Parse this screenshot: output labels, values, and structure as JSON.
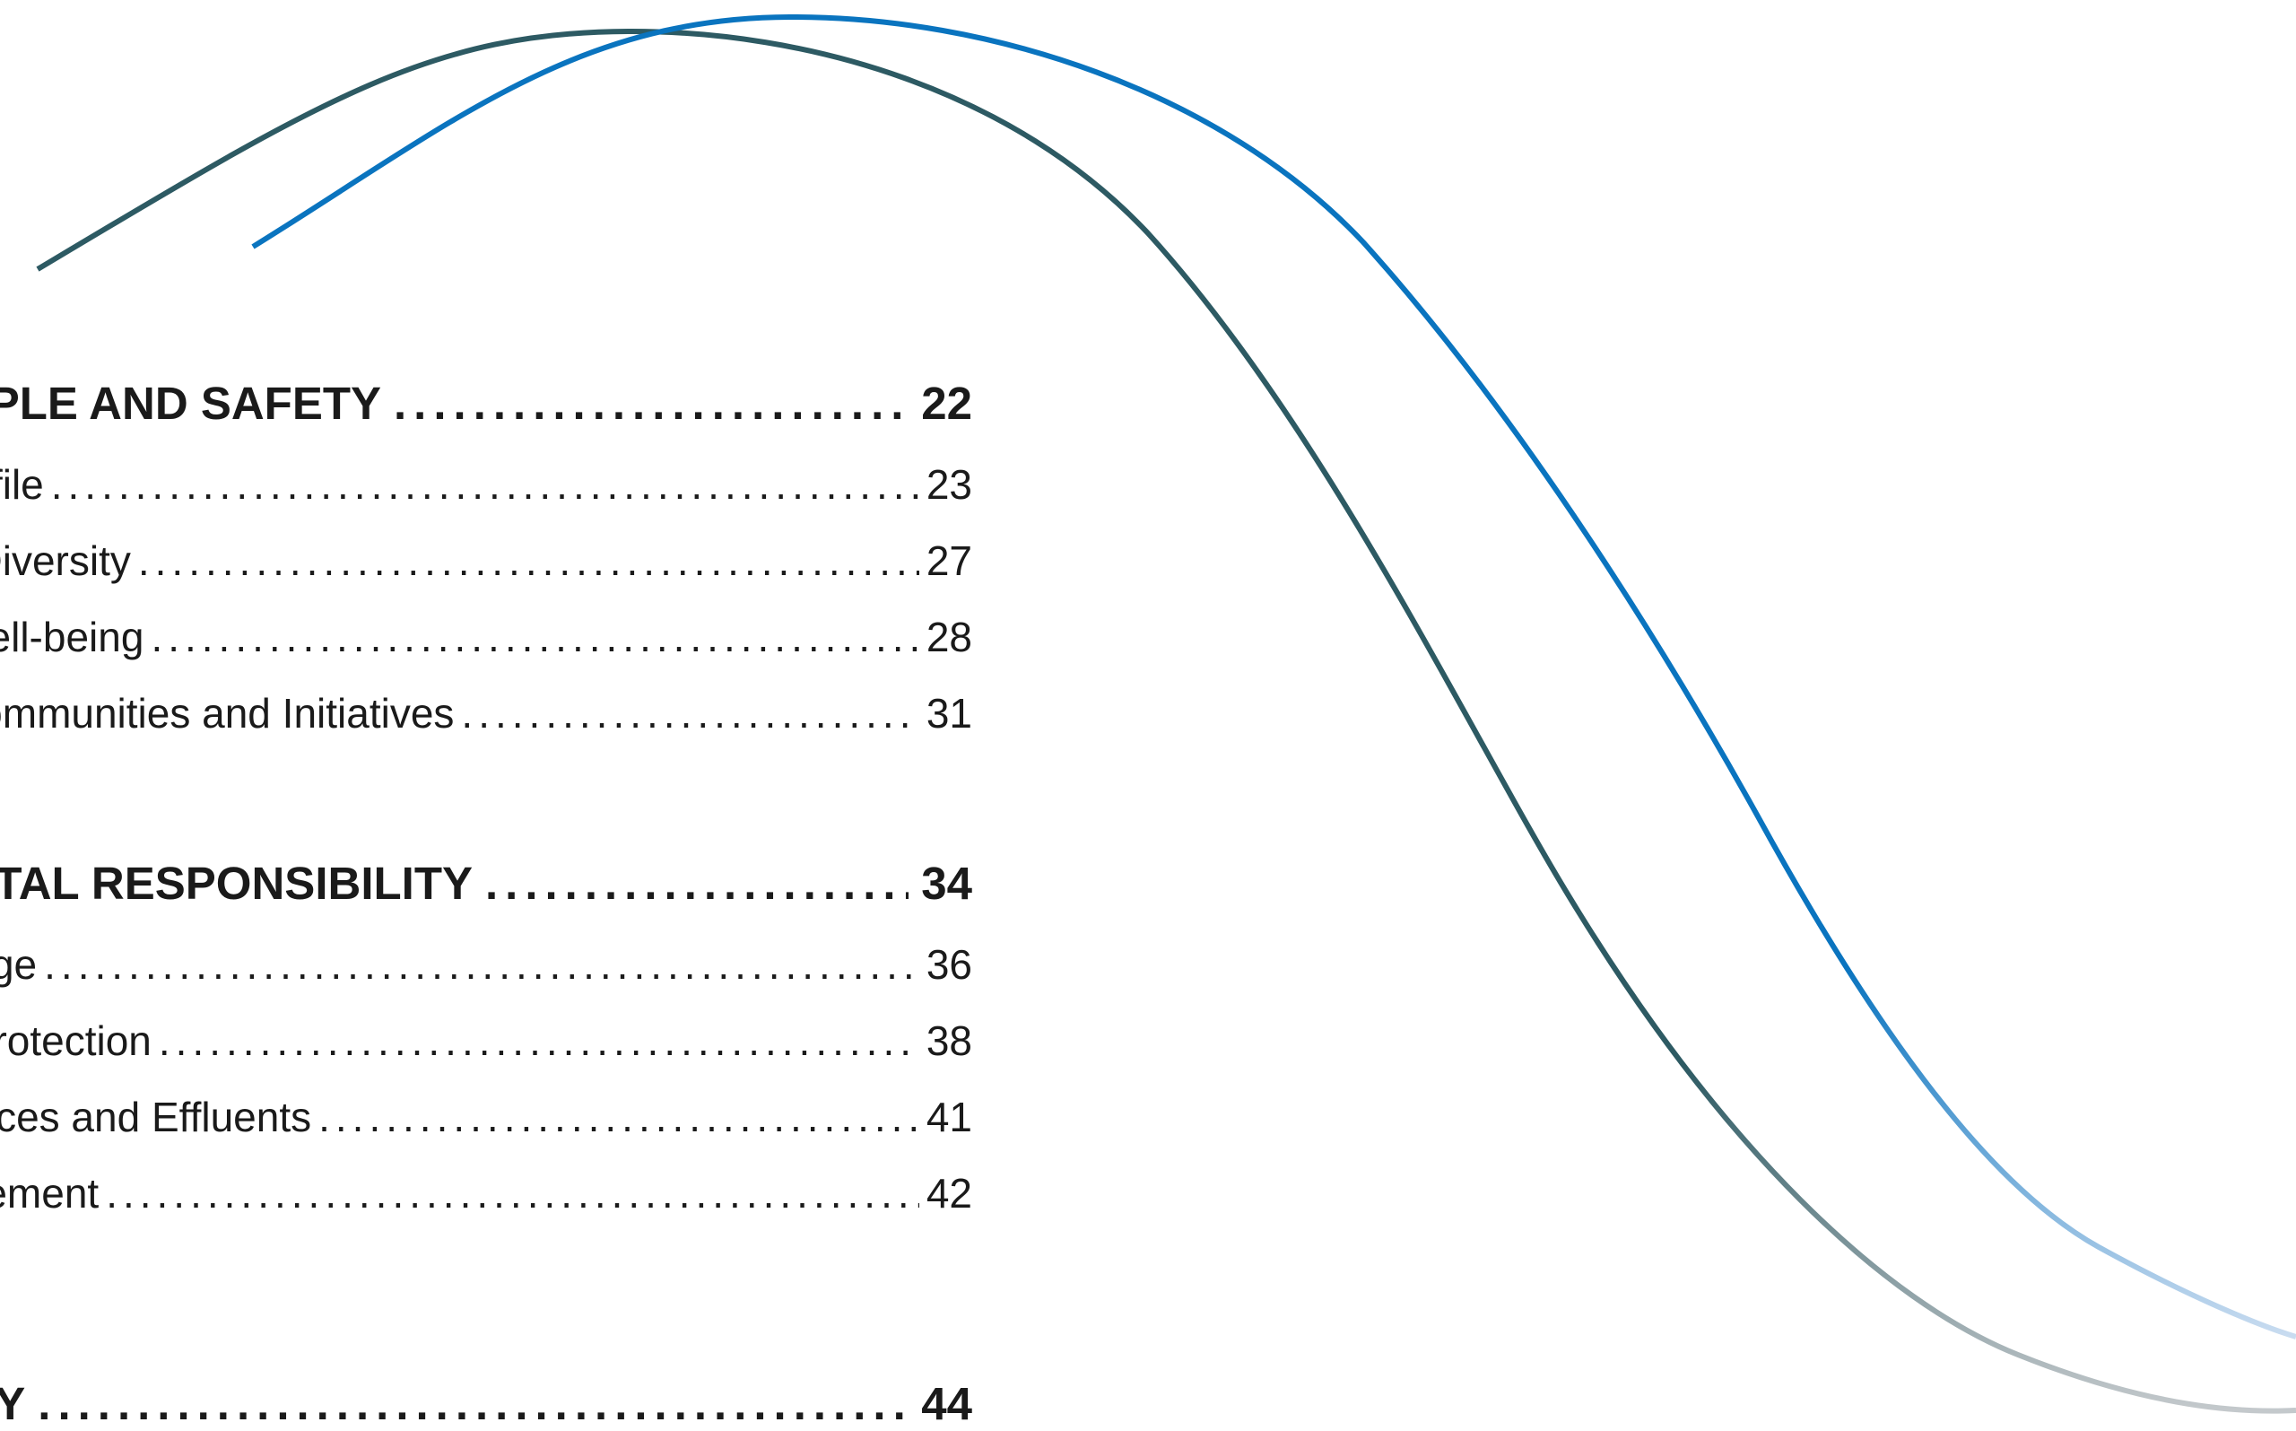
{
  "toc": {
    "sections": [
      {
        "title": "PEOPLE AND SAFETY",
        "page": "22",
        "entries": [
          {
            "title": "e Profile",
            "page": "23"
          },
          {
            "title": "and Diversity",
            "page": "27"
          },
          {
            "title": "nd Well-being",
            "page": "28"
          },
          {
            "title": "ed Communities and Initiatives",
            "page": "31"
          }
        ]
      },
      {
        "title": "MENTAL RESPONSIBILITY",
        "page": "34",
        "entries": [
          {
            "title": "Change",
            "page": "36"
          },
          {
            "title": "sity Protection",
            "page": "38"
          },
          {
            "title": "esources and Effluents",
            "page": "41"
          },
          {
            "title": "anagement",
            "page": "42"
          }
        ]
      },
      {
        "title": "MARY",
        "page": "44",
        "entries": []
      }
    ],
    "leader_char": "."
  },
  "decor": {
    "wave_dark_color": "#2d5a63",
    "wave_blue_color": "#0a74bf",
    "wave_fade_color": "#c9d6e3"
  }
}
